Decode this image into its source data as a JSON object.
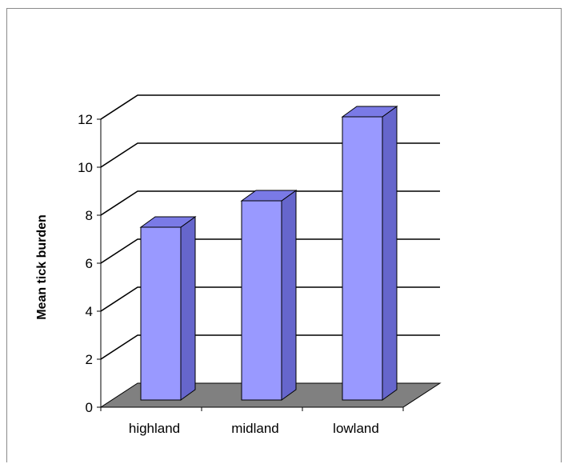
{
  "chart_data": {
    "type": "bar",
    "style": "3d-column",
    "title": "",
    "xlabel": "",
    "ylabel": "Mean tick burden",
    "categories": [
      "highland",
      "midland",
      "lowland"
    ],
    "values": [
      7.2,
      8.3,
      11.8
    ],
    "ylim": [
      0,
      12
    ],
    "yticks": [
      "0",
      "2",
      "4",
      "6",
      "8",
      "10",
      "12"
    ],
    "grid": true,
    "legend": "none",
    "colors": {
      "bar_front": "#9999ff",
      "bar_side": "#6666cc",
      "bar_top": "#7a7ae6",
      "floor": "#808080",
      "grid": "#000000"
    }
  }
}
